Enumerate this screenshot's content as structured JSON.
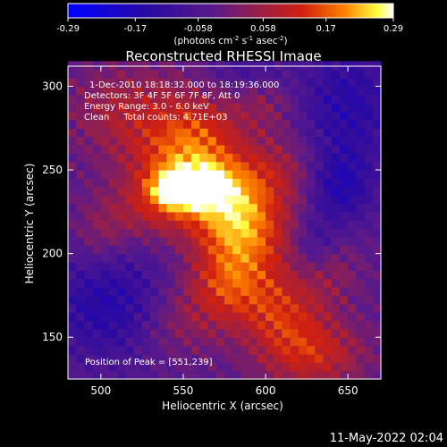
{
  "chart_data": {
    "type": "heatmap",
    "title": "Reconstructed RHESSI Image",
    "xlabel": "Heliocentric X (arcsec)",
    "ylabel": "Heliocentric Y (arcsec)",
    "xlim": [
      480,
      670
    ],
    "ylim": [
      125,
      312
    ],
    "x_ticks": [
      500,
      550,
      600,
      650
    ],
    "y_ticks": [
      150,
      200,
      250,
      300
    ],
    "colorbar": {
      "label_base": "(photons cm",
      "label_exp1": "-2",
      "label_mid1": " s",
      "label_exp2": "-1",
      "label_mid2": " asec",
      "label_exp3": "-2",
      "label_end": ")",
      "range": [
        -0.29,
        0.29
      ],
      "tick_values": [
        -0.29,
        -0.17,
        -0.058,
        0.058,
        0.17,
        0.29
      ],
      "tick_labels": [
        "-0.29",
        "-0.17",
        "-0.058",
        "0.058",
        "0.17",
        "0.29"
      ]
    },
    "annotations": [
      "1-Dec-2010 18:18:32.000 to 18:19:36.000",
      "Detectors: 3F 4F 5F 6F 7F 8F, Att 0",
      "Energy Range: 3.0 - 6.0 keV",
      "Clean     Total counts: 4.71E+03"
    ],
    "peak_label": "Position of Peak = [551,239]",
    "peak": [
      551,
      239
    ],
    "footer_timestamp": "11-May-2022 02:04",
    "sources": [
      {
        "x": 551,
        "y": 239,
        "sx": 14,
        "sy": 8,
        "amp": 0.29
      },
      {
        "x": 565,
        "y": 247,
        "sx": 20,
        "sy": 14,
        "amp": 0.14
      },
      {
        "x": 535,
        "y": 228,
        "sx": 22,
        "sy": 14,
        "amp": 0.12
      },
      {
        "x": 580,
        "y": 225,
        "sx": 18,
        "sy": 18,
        "amp": 0.16
      },
      {
        "x": 590,
        "y": 205,
        "sx": 20,
        "sy": 22,
        "amp": 0.14
      },
      {
        "x": 575,
        "y": 180,
        "sx": 16,
        "sy": 16,
        "amp": 0.12
      },
      {
        "x": 610,
        "y": 165,
        "sx": 18,
        "sy": 16,
        "amp": 0.13
      },
      {
        "x": 628,
        "y": 140,
        "sx": 22,
        "sy": 14,
        "amp": 0.14
      },
      {
        "x": 520,
        "y": 285,
        "sx": 26,
        "sy": 18,
        "amp": 0.11
      },
      {
        "x": 560,
        "y": 275,
        "sx": 18,
        "sy": 14,
        "amp": 0.12
      },
      {
        "x": 540,
        "y": 258,
        "sx": 20,
        "sy": 12,
        "amp": 0.09
      },
      {
        "x": 610,
        "y": 250,
        "sx": 18,
        "sy": 16,
        "amp": 0.08
      },
      {
        "x": 545,
        "y": 160,
        "sx": 18,
        "sy": 16,
        "amp": 0.07
      },
      {
        "x": 500,
        "y": 210,
        "sx": 12,
        "sy": 14,
        "amp": 0.06
      },
      {
        "x": 640,
        "y": 190,
        "sx": 12,
        "sy": 14,
        "amp": 0.06
      },
      {
        "x": 600,
        "y": 290,
        "sx": 14,
        "sy": 12,
        "amp": 0.06
      },
      {
        "x": 645,
        "y": 240,
        "sx": 14,
        "sy": 16,
        "amp": -0.13
      },
      {
        "x": 505,
        "y": 170,
        "sx": 26,
        "sy": 24,
        "amp": -0.13
      },
      {
        "x": 650,
        "y": 290,
        "sx": 22,
        "sy": 26,
        "amp": -0.12
      },
      {
        "x": 630,
        "y": 205,
        "sx": 10,
        "sy": 12,
        "amp": -0.07
      },
      {
        "x": 590,
        "y": 310,
        "sx": 16,
        "sy": 10,
        "amp": -0.06
      }
    ]
  }
}
